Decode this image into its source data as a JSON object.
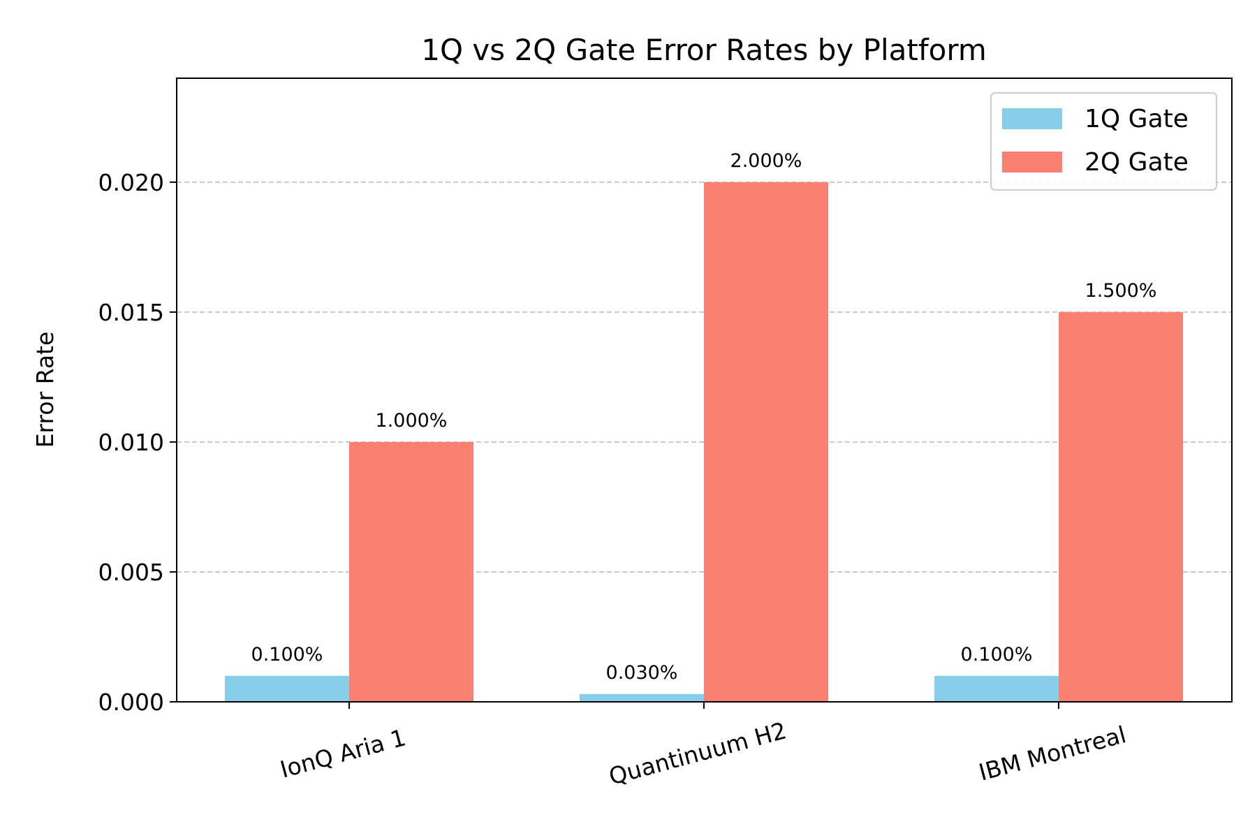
{
  "chart_data": {
    "type": "bar",
    "title": "1Q vs 2Q Gate Error Rates by Platform",
    "xlabel": "",
    "ylabel": "Error Rate",
    "categories": [
      "IonQ Aria 1",
      "Quantinuum H2",
      "IBM Montreal"
    ],
    "series": [
      {
        "name": "1Q Gate",
        "color": "#87CEEB",
        "values": [
          0.001,
          0.0003,
          0.001
        ],
        "labels": [
          "0.100%",
          "0.030%",
          "0.100%"
        ]
      },
      {
        "name": "2Q Gate",
        "color": "#FA8072",
        "values": [
          0.01,
          0.02,
          0.015
        ],
        "labels": [
          "1.000%",
          "2.000%",
          "1.500%"
        ]
      }
    ],
    "ylim": [
      0,
      0.024
    ],
    "yticks": [
      0.0,
      0.005,
      0.01,
      0.015,
      0.02
    ],
    "ytick_labels": [
      "0.000",
      "0.005",
      "0.010",
      "0.015",
      "0.020"
    ],
    "grid": "y-dashed",
    "legend_position": "top-right"
  }
}
